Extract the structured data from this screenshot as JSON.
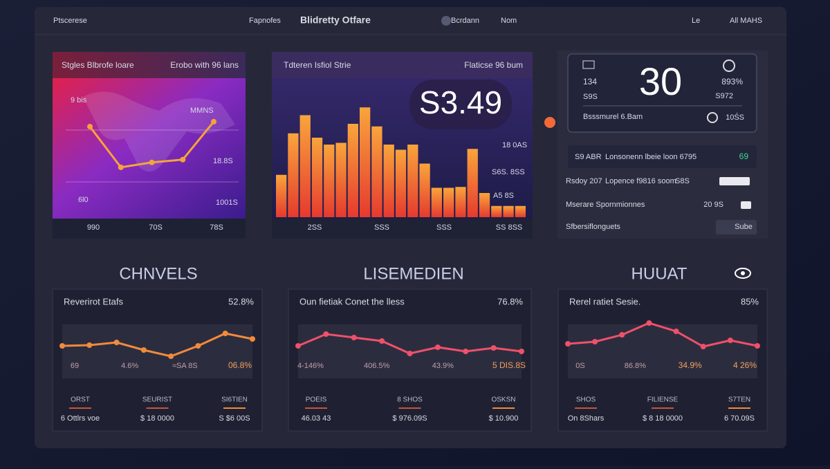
{
  "topbar": {
    "left": "Ptscerese",
    "nav": "Fapnofes",
    "title": "Blidretty Otfare",
    "search": "Bcrdann",
    "menu": "Nom",
    "lang": "Le",
    "account": "All MAHS"
  },
  "map_panel": {
    "title": "Stgles Blbrofe loare",
    "subtitle": "Erobo with 96 lans",
    "labels": [
      "9 bis",
      "MMNS",
      "18.8S",
      "6l0",
      "1001S"
    ],
    "x_labels": [
      "990",
      "70S",
      "78S"
    ],
    "chart": {
      "type": "line",
      "values": [
        131,
        73,
        80,
        84,
        138
      ],
      "ylim": [
        0,
        200
      ],
      "color": "#f5a43a"
    }
  },
  "bar_panel": {
    "title": "Tdteren Isfiol Strie",
    "subtitle": "Flaticse 96 bum",
    "highlight": "S3.49",
    "side_labels": [
      "18 0AS",
      "S6S. 8SS",
      "A5 8S"
    ],
    "x_labels": [
      "2SS",
      "SSS",
      "SSS",
      "SS 8SS"
    ],
    "chart": {
      "type": "bar",
      "values": [
        49,
        97,
        118,
        92,
        84,
        86,
        108,
        127,
        105,
        84,
        78,
        84,
        62,
        34,
        34,
        35,
        79,
        28,
        13,
        13,
        13
      ],
      "ylim": [
        0,
        160
      ]
    }
  },
  "stat_panel": {
    "left_top": "134",
    "left_bottom": "S9S",
    "big": "30",
    "right_top": "893%",
    "right_bottom": "S972",
    "footer": "Bsssmurel 6.Bam",
    "footer_right": "10ŚS",
    "highlight_row": {
      "code": "S9 ABR",
      "text": "Lonsonenn lbeie loon 6795",
      "value": "69"
    },
    "rows": [
      {
        "label": "Rsdoy 207",
        "text": "Lopence f9816 soom",
        "value": "S8S"
      },
      {
        "label": "Mserare Spornmionnes",
        "value": "20 9S"
      },
      {
        "label": "Sfbersiflonguets",
        "button": "Sube"
      }
    ]
  },
  "sections": [
    "CHNVELS",
    "LISEMEDIEN",
    "HUUAT"
  ],
  "cards": [
    {
      "title": "Reverirot Etafs",
      "value": "52.8%",
      "chart": {
        "type": "line",
        "values": [
          47,
          48,
          52,
          41,
          32,
          47,
          65,
          57
        ],
        "ylim": [
          0,
          80
        ],
        "color": "#f28a3c"
      },
      "point_labels": [
        "69",
        "4.6%",
        "≈SA 8S",
        "06.8%"
      ],
      "stats": [
        {
          "label": "ORST",
          "value": "6 Ottlrs voe"
        },
        {
          "label": "SEURIST",
          "value": "$ 18 0000"
        },
        {
          "label": "SI6TIEN",
          "value": "S $6 00S"
        }
      ]
    },
    {
      "title": "Oun fietiak Conet the lless",
      "value": "76.8%",
      "chart": {
        "type": "line",
        "values": [
          47,
          64,
          59,
          54,
          36,
          45,
          39,
          44,
          39
        ],
        "ylim": [
          0,
          80
        ],
        "color": "#f0506a"
      },
      "point_labels": [
        "4-146%",
        "406.5%",
        "43.9%",
        "5 DIS.8S"
      ],
      "stats": [
        {
          "label": "POEIS",
          "value": "46.03 43"
        },
        {
          "label": "8 SHOS",
          "value": "$ 976.09S"
        },
        {
          "label": "OSKSN",
          "value": "$ 10.900"
        }
      ]
    },
    {
      "title": "Rerel ratiet Sesie.",
      "value": "85%",
      "chart": {
        "type": "line",
        "values": [
          50,
          53,
          63,
          80,
          68,
          46,
          55,
          47
        ],
        "ylim": [
          0,
          80
        ],
        "color": "#f0506a"
      },
      "point_labels": [
        "0S",
        "86.8%",
        "34.9%",
        "4 26%"
      ],
      "stats": [
        {
          "label": "SHOS",
          "value": "On 8Shars"
        },
        {
          "label": "FILIENSE",
          "value": "$ 8 18 0000"
        },
        {
          "label": "S7TEN",
          "value": "6 70.09S"
        }
      ]
    }
  ]
}
